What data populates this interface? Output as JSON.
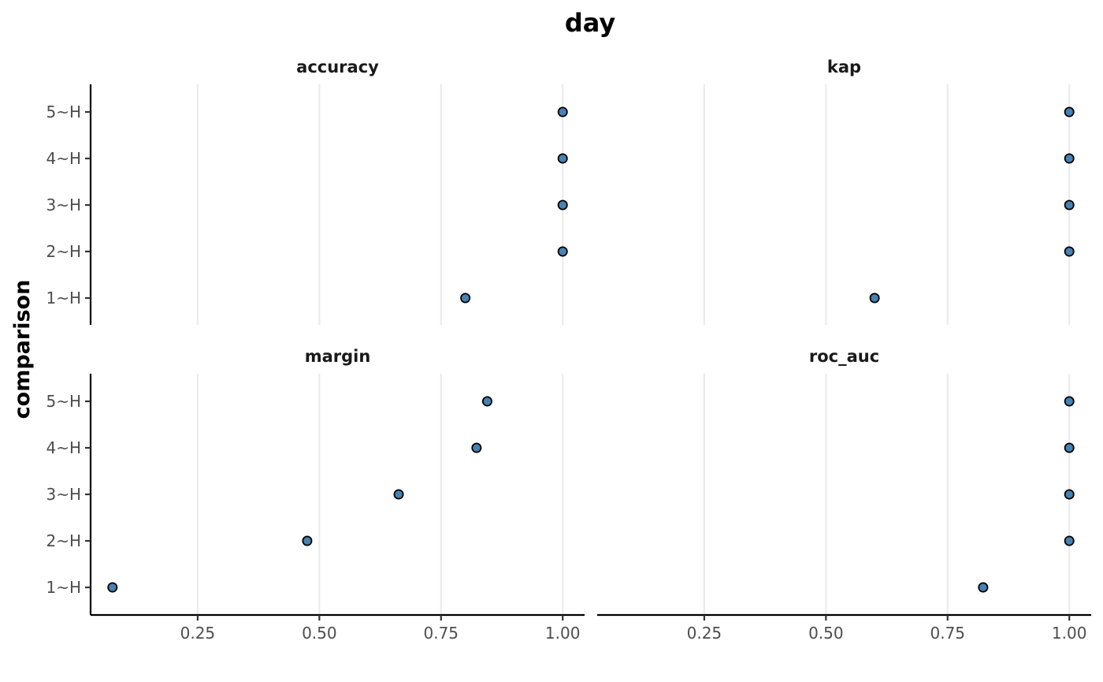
{
  "chart_data": {
    "type": "scatter",
    "title": "day",
    "ylabel": "comparison",
    "xlabel": "",
    "x_ticks": [
      "0.25",
      "0.50",
      "0.75",
      "1.00"
    ],
    "x_tick_values": [
      0.25,
      0.5,
      0.75,
      1.0
    ],
    "xlim": [
      0.03,
      1.045
    ],
    "y_categories": [
      "1~H",
      "2~H",
      "3~H",
      "4~H",
      "5~H"
    ],
    "grid": "vertical major only",
    "colors": {
      "point_fill": "#4682b4",
      "point_stroke": "#000000",
      "grid": "#ebebeb"
    },
    "panels": [
      {
        "name": "accuracy",
        "values": [
          0.8,
          1.0,
          1.0,
          1.0,
          1.0
        ]
      },
      {
        "name": "kap",
        "values": [
          0.6,
          1.0,
          1.0,
          1.0,
          1.0
        ]
      },
      {
        "name": "margin",
        "values": [
          0.075,
          0.475,
          0.663,
          0.823,
          0.845
        ]
      },
      {
        "name": "roc_auc",
        "values": [
          0.823,
          1.0,
          1.0,
          1.0,
          1.0
        ]
      }
    ]
  }
}
